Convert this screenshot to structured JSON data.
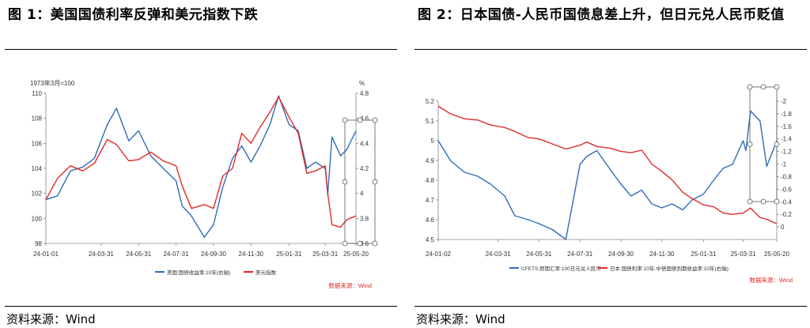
{
  "figures": [
    {
      "title": "图 1：美国国债利率反弹和美元指数下跌",
      "source": "资料来源：Wind",
      "chart_inner_source": "数据来源：Wind",
      "chart_data": {
        "type": "line",
        "left_axis_note": "1973年3月=100",
        "right_axis_note": "%",
        "x_ticks": [
          "24-01-01",
          "24-03-31",
          "24-05-31",
          "24-07-31",
          "24-09-30",
          "24-11-30",
          "25-01-31",
          "25-03-31",
          "25-05-20"
        ],
        "ylim_left": [
          98,
          110
        ],
        "yticks_left": [
          98,
          100,
          102,
          104,
          106,
          108,
          110
        ],
        "ylim_right": [
          3.6,
          4.8
        ],
        "yticks_right": [
          3.6,
          3.8,
          4.0,
          4.2,
          4.4,
          4.6,
          4.8
        ],
        "series": [
          {
            "name": "美国:国债收益率:10年(右轴)",
            "axis": "right",
            "color": "#2e6db4",
            "x": [
              "24-01-01",
              "24-01-20",
              "24-02-10",
              "24-03-01",
              "24-03-20",
              "24-04-10",
              "24-04-25",
              "24-05-15",
              "24-05-31",
              "24-06-20",
              "24-07-10",
              "24-07-31",
              "24-08-10",
              "24-08-25",
              "24-09-15",
              "24-09-30",
              "24-10-15",
              "24-10-31",
              "24-11-15",
              "24-11-30",
              "24-12-15",
              "24-12-31",
              "25-01-14",
              "25-01-31",
              "25-02-15",
              "25-03-01",
              "25-03-15",
              "25-03-31",
              "25-04-04",
              "25-04-11",
              "25-04-25",
              "25-05-05",
              "25-05-20"
            ],
            "values": [
              3.95,
              3.98,
              4.18,
              4.21,
              4.28,
              4.55,
              4.68,
              4.42,
              4.5,
              4.3,
              4.2,
              4.1,
              3.9,
              3.82,
              3.65,
              3.75,
              4.05,
              4.28,
              4.38,
              4.25,
              4.38,
              4.55,
              4.78,
              4.55,
              4.5,
              4.2,
              4.25,
              4.2,
              3.99,
              4.45,
              4.3,
              4.35,
              4.5
            ]
          },
          {
            "name": "美元指数",
            "axis": "left",
            "color": "#e02a2a",
            "x": [
              "24-01-01",
              "24-01-20",
              "24-02-10",
              "24-03-01",
              "24-03-20",
              "24-04-10",
              "24-04-25",
              "24-05-15",
              "24-05-31",
              "24-06-20",
              "24-07-10",
              "24-07-31",
              "24-08-10",
              "24-08-25",
              "24-09-15",
              "24-09-30",
              "24-10-15",
              "24-10-31",
              "24-11-15",
              "24-11-30",
              "24-12-15",
              "24-12-31",
              "25-01-14",
              "25-01-31",
              "25-02-15",
              "25-03-01",
              "25-03-15",
              "25-03-31",
              "25-04-04",
              "25-04-11",
              "25-04-25",
              "25-05-05",
              "25-05-20"
            ],
            "values": [
              101.5,
              103.2,
              104.2,
              103.8,
              104.4,
              106.3,
              105.9,
              104.6,
              104.7,
              105.3,
              104.6,
              104.2,
              102.6,
              100.8,
              101.1,
              100.8,
              103.4,
              104.0,
              106.8,
              106.0,
              107.3,
              108.5,
              109.7,
              108.1,
              106.8,
              103.6,
              103.8,
              104.2,
              102.0,
              99.5,
              99.3,
              99.9,
              100.2
            ]
          }
        ]
      }
    },
    {
      "title": "图 2：日本国债-人民币国债息差上升，但日元兑人民币贬值",
      "source": "资料来源：Wind",
      "chart_inner_source": "数据来源：Wind",
      "chart_data": {
        "type": "line",
        "right_axis_inverted": true,
        "x_ticks": [
          "24-01-02",
          "24-03-31",
          "24-05-31",
          "24-07-31",
          "24-09-30",
          "24-11-30",
          "25-01-31",
          "25-03-31",
          "25-05-20"
        ],
        "ylim_left": [
          4.5,
          5.2
        ],
        "yticks_left": [
          4.5,
          4.6,
          4.7,
          4.8,
          4.9,
          5,
          5.1,
          5.2
        ],
        "ylim_right": [
          -2,
          0.2
        ],
        "yticks_right": [
          -2,
          -1.8,
          -1.6,
          -1.4,
          -1.2,
          -1,
          -0.8,
          -0.6,
          -0.4,
          -0.2,
          0
        ],
        "series": [
          {
            "name": "CFETS:即期汇率:100日元兑人民币",
            "axis": "left",
            "color": "#2e6db4",
            "x": [
              "24-01-02",
              "24-01-20",
              "24-02-10",
              "24-03-01",
              "24-03-20",
              "24-04-10",
              "24-04-25",
              "24-05-15",
              "24-05-31",
              "24-06-20",
              "24-07-10",
              "24-07-31",
              "24-08-10",
              "24-08-25",
              "24-09-15",
              "24-09-30",
              "24-10-15",
              "24-10-31",
              "24-11-15",
              "24-11-30",
              "24-12-15",
              "24-12-31",
              "25-01-14",
              "25-01-31",
              "25-02-15",
              "25-03-01",
              "25-03-15",
              "25-03-31",
              "25-04-04",
              "25-04-11",
              "25-04-25",
              "25-05-05",
              "25-05-20"
            ],
            "values": [
              5.0,
              4.9,
              4.84,
              4.82,
              4.78,
              4.72,
              4.62,
              4.6,
              4.58,
              4.55,
              4.5,
              4.88,
              4.92,
              4.95,
              4.85,
              4.78,
              4.72,
              4.75,
              4.68,
              4.66,
              4.68,
              4.65,
              4.7,
              4.73,
              4.8,
              4.86,
              4.88,
              5.0,
              4.95,
              5.15,
              5.1,
              4.87,
              5.0
            ]
          },
          {
            "name": "日本:国债利率:10年-中债国债到期收益率:10年(右轴)",
            "axis": "right",
            "color": "#e02a2a",
            "x": [
              "24-01-02",
              "24-01-20",
              "24-02-10",
              "24-03-01",
              "24-03-20",
              "24-04-10",
              "24-04-25",
              "24-05-15",
              "24-05-31",
              "24-06-20",
              "24-07-10",
              "24-07-31",
              "24-08-10",
              "24-08-25",
              "24-09-15",
              "24-09-30",
              "24-10-15",
              "24-10-31",
              "24-11-15",
              "24-11-30",
              "24-12-15",
              "24-12-31",
              "25-01-14",
              "25-01-31",
              "25-02-15",
              "25-03-01",
              "25-03-15",
              "25-03-31",
              "25-04-04",
              "25-04-11",
              "25-04-25",
              "25-05-05",
              "25-05-20"
            ],
            "values": [
              -1.92,
              -1.8,
              -1.72,
              -1.7,
              -1.62,
              -1.58,
              -1.52,
              -1.42,
              -1.4,
              -1.32,
              -1.24,
              -1.3,
              -1.35,
              -1.28,
              -1.25,
              -1.2,
              -1.18,
              -1.22,
              -1.0,
              -0.88,
              -0.75,
              -0.55,
              -0.45,
              -0.35,
              -0.32,
              -0.22,
              -0.2,
              -0.22,
              -0.25,
              -0.3,
              -0.15,
              -0.12,
              -0.05
            ]
          }
        ]
      }
    }
  ]
}
